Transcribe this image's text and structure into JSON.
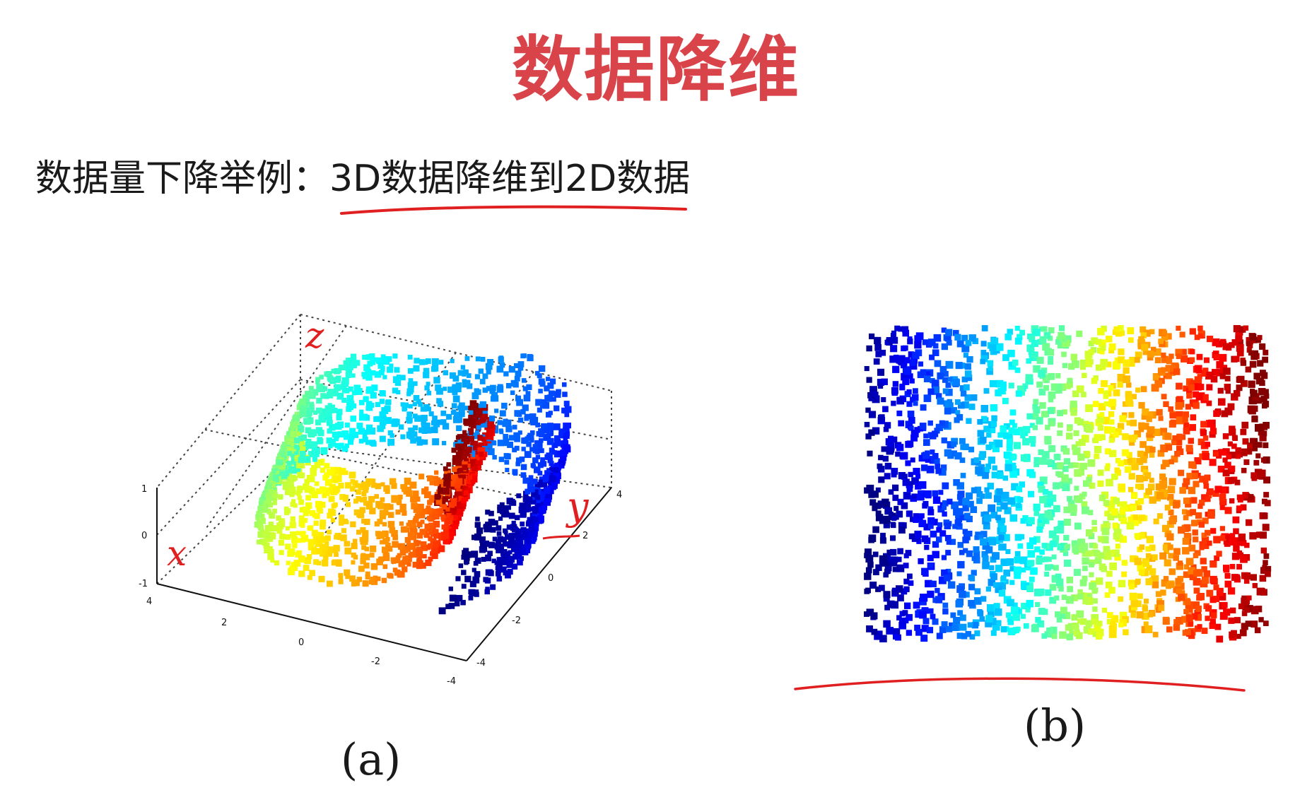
{
  "slide": {
    "title": "数据降维",
    "subtitle_prefix": "数据量下降举例：",
    "subtitle_highlight": "3D数据降维到2D数据"
  },
  "figure_a": {
    "caption": "(a)",
    "annotations": {
      "z": "z",
      "y": "y",
      "x": "x"
    },
    "axis_ticks": {
      "z": [
        "1",
        "0",
        "-1"
      ],
      "x": [
        "4",
        "2",
        "0",
        "-2",
        "-4"
      ],
      "y": [
        "4",
        "2",
        "0",
        "-2",
        "-4"
      ]
    }
  },
  "figure_b": {
    "caption": "(b)"
  },
  "colors": {
    "title": "#d9434a",
    "annotation": "#e02020",
    "colormap": "jet"
  }
}
